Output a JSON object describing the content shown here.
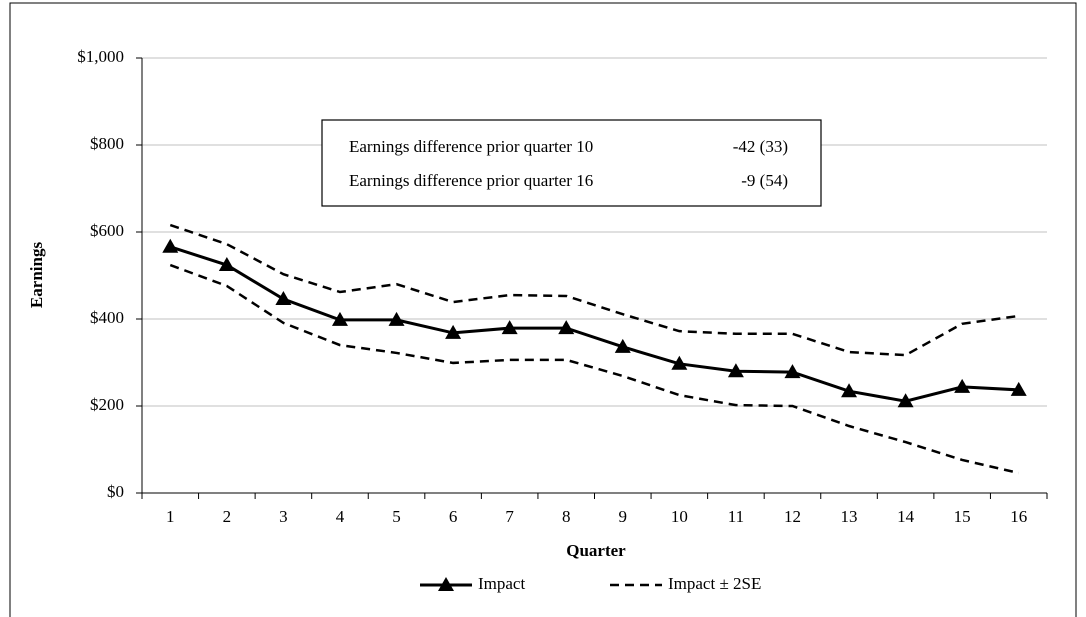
{
  "chart_data": {
    "type": "line",
    "xlabel": "Quarter",
    "ylabel": "Earnings",
    "categories": [
      "1",
      "2",
      "3",
      "4",
      "5",
      "6",
      "7",
      "8",
      "9",
      "10",
      "11",
      "12",
      "13",
      "14",
      "15",
      "16"
    ],
    "series": [
      {
        "name": "Impact",
        "color": "#000000",
        "marker": "triangle",
        "values": [
          566,
          524,
          446,
          398,
          398,
          368,
          379,
          379,
          336,
          297,
          280,
          278,
          234,
          211,
          244,
          237
        ]
      },
      {
        "name": "Impact ± 2SE",
        "color": "#000000",
        "dashed": true,
        "upper": [
          616,
          572,
          503,
          462,
          480,
          439,
          455,
          453,
          411,
          372,
          366,
          366,
          324,
          317,
          389,
          407
        ],
        "lower": [
          524,
          476,
          391,
          340,
          322,
          299,
          306,
          306,
          269,
          225,
          202,
          200,
          154,
          117,
          76,
          46
        ]
      }
    ],
    "ylim": [
      0,
      1000
    ],
    "yticks": [
      {
        "value": 0,
        "label": "$0"
      },
      {
        "value": 200,
        "label": "$200"
      },
      {
        "value": 400,
        "label": "$400"
      },
      {
        "value": 600,
        "label": "$600"
      },
      {
        "value": 800,
        "label": "$800"
      },
      {
        "value": 1000,
        "label": "$1,000"
      }
    ],
    "grid": true,
    "annotations": [
      {
        "text": "Earnings difference prior quarter 10",
        "value": "-42 (33)"
      },
      {
        "text": "Earnings difference prior quarter 16",
        "value": "-9 (54)"
      }
    ]
  }
}
